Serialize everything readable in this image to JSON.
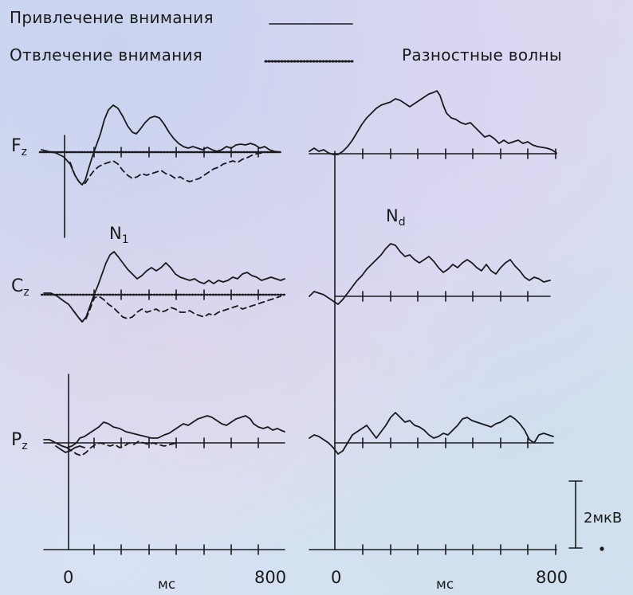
{
  "legend": {
    "attention_label": "Привлечение внимания",
    "distraction_label": "Отвлечение внимания",
    "difference_label": "Разностные волны"
  },
  "channels": {
    "fz": {
      "main": "F",
      "sub": "z"
    },
    "cz": {
      "main": "C",
      "sub": "z"
    },
    "pz": {
      "main": "P",
      "sub": "z"
    }
  },
  "peaks": {
    "n1": {
      "main": "N",
      "sub": "1"
    },
    "nd": {
      "main": "N",
      "sub": "d"
    }
  },
  "axes": {
    "left": {
      "start": "0",
      "end": "800",
      "unit": "мс"
    },
    "right": {
      "start": "0",
      "end": "800",
      "unit": "мс"
    }
  },
  "scale_bar": {
    "label": "2мкВ"
  },
  "colors": {
    "ink": "#1a1a1a"
  }
}
